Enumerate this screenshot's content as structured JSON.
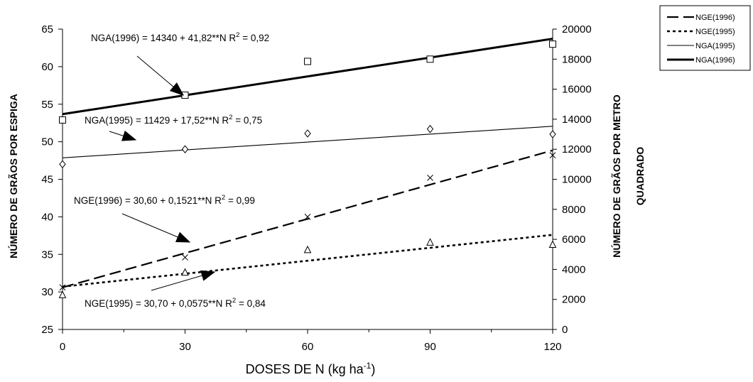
{
  "chart_data": {
    "type": "line",
    "xlabel": "DOSES DE N (kg ha",
    "xlabel_sup": "-1",
    "xlabel_close": ")",
    "ylabel_left": "NÚMERO DE GRÃOS POR ESPIGA",
    "ylabel_right_line1": "NÚMERO DE GRÃOS POR METRO",
    "ylabel_right_line2": "QUADRADO",
    "x_ticks": [
      0,
      30,
      60,
      90,
      120
    ],
    "xlim": [
      0,
      120
    ],
    "y_left_ticks": [
      25,
      30,
      35,
      40,
      45,
      50,
      55,
      60,
      65
    ],
    "ylim_left": [
      25,
      65
    ],
    "y_right_ticks": [
      0,
      2000,
      4000,
      6000,
      8000,
      10000,
      12000,
      14000,
      16000,
      18000,
      20000
    ],
    "ylim_right": [
      0,
      20000
    ],
    "grid": false,
    "legend_position": "top-right, outside plot",
    "series": [
      {
        "name": "NGE(1996)",
        "axis": "left",
        "line_style": "long-dash",
        "marker": "x",
        "x": [
          0,
          30,
          60,
          90,
          120
        ],
        "points": [
          30.6,
          34.6,
          40.0,
          45.2,
          48.2
        ],
        "fit": {
          "intercept": 30.6,
          "slope": 0.1521
        },
        "equation": {
          "text": "NGE(1996) = 30,60 + 0,1521**N  R",
          "sup": "2",
          "tail": " = 0,99"
        }
      },
      {
        "name": "NGE(1995)",
        "axis": "left",
        "line_style": "dotted",
        "marker": "triangle",
        "x": [
          0,
          30,
          60,
          90,
          120
        ],
        "points": [
          29.6,
          32.6,
          35.6,
          36.6,
          36.3
        ],
        "fit": {
          "intercept": 30.7,
          "slope": 0.0575
        },
        "equation": {
          "text": "NGE(1995) = 30,70 + 0,0575**N  R",
          "sup": "2",
          "tail": " = 0,84"
        }
      },
      {
        "name": "NGA(1995)",
        "axis": "right",
        "line_style": "thin-solid",
        "marker": "diamond",
        "x": [
          0,
          30,
          60,
          90,
          120
        ],
        "points": [
          11000,
          12000,
          13050,
          13350,
          13000
        ],
        "fit": {
          "intercept": 11429,
          "slope": 17.52
        },
        "equation": {
          "text": "NGA(1995) = 11429 + 17,52**N  R",
          "sup": "2",
          "tail": " = 0,75"
        }
      },
      {
        "name": "NGA(1996)",
        "axis": "right",
        "line_style": "thick-solid",
        "marker": "square",
        "x": [
          0,
          30,
          60,
          90,
          120
        ],
        "points": [
          13950,
          15600,
          17850,
          18000,
          19000
        ],
        "fit": {
          "intercept": 14340,
          "slope": 41.82
        },
        "equation": {
          "text": "NGA(1996) = 14340 + 41,82**N  R",
          "sup": "2",
          "tail": " = 0,92"
        }
      }
    ],
    "legend_order": [
      "NGE(1996)",
      "NGE(1995)",
      "NGA(1995)",
      "NGA(1996)"
    ]
  }
}
